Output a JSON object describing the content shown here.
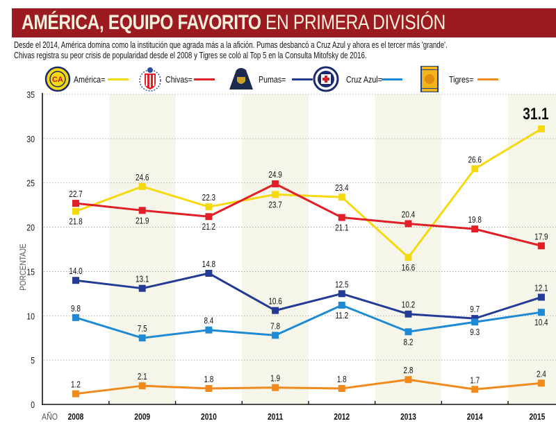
{
  "header": {
    "title_bold": "AMÉRICA, EQUIPO FAVORITO",
    "title_light": "EN PRIMERA DIVISIÓN",
    "subtitle_lines": [
      "Desde el 2014, América domina como la institución que agrada más a la afición. Pumas desbancó a Cruz Azul y ahora es el tercer más 'grande'.",
      "Chivas registra su peor crisis de popularidad desde el 2008 y Tigres se coló al Top 5 en la Consulta Mitofsky de 2016."
    ]
  },
  "legend": [
    {
      "label": "América=",
      "color": "#f5d90f",
      "icon": "club-america-crest-icon"
    },
    {
      "label": "Chivas=",
      "color": "#e01f26",
      "icon": "chivas-crest-icon"
    },
    {
      "label": "Pumas=",
      "color": "#233b95",
      "icon": "pumas-crest-icon"
    },
    {
      "label": "Cruz Azul=",
      "color": "#1f8ad4",
      "icon": "cruz-azul-crest-icon"
    },
    {
      "label": "Tigres=",
      "color": "#f08a1d",
      "icon": "tigres-crest-icon"
    }
  ],
  "chart_data": {
    "type": "line",
    "title": "AMÉRICA, EQUIPO FAVORITO EN PRIMERA DIVISIÓN",
    "xlabel": "AÑO",
    "ylabel": "PORCENTAJE",
    "x": [
      "2008",
      "2009",
      "2010",
      "2011",
      "2012",
      "2013",
      "2014",
      "2015"
    ],
    "ylim": [
      0,
      35
    ],
    "yticks": [
      0,
      5,
      10,
      15,
      20,
      25,
      30,
      35
    ],
    "grid": "horizontal-dotted",
    "alternating_column_shading": true,
    "legend_position": "top",
    "series": [
      {
        "name": "América",
        "color": "#f5d90f",
        "values": [
          21.8,
          24.6,
          22.3,
          23.7,
          23.4,
          16.6,
          26.6,
          31.1
        ],
        "labels": [
          "21.8",
          "24.6",
          "22.3",
          "23.7",
          "23.4",
          "16.6",
          "26.6",
          "31.1"
        ],
        "label_pos": [
          "below",
          "above",
          "above",
          "below",
          "above",
          "below",
          "above",
          "above-big"
        ]
      },
      {
        "name": "Chivas",
        "color": "#e01f26",
        "values": [
          22.7,
          21.9,
          21.2,
          24.9,
          21.1,
          20.4,
          19.8,
          17.9
        ],
        "labels": [
          "22.7",
          "21.9",
          "21.2",
          "24.9",
          "21.1",
          "20.4",
          "19.8",
          "17.9"
        ],
        "label_pos": [
          "above",
          "below",
          "below",
          "above",
          "below",
          "above",
          "above",
          "above"
        ]
      },
      {
        "name": "Pumas",
        "color": "#233b95",
        "values": [
          14.0,
          13.1,
          14.8,
          10.6,
          12.5,
          10.2,
          9.7,
          12.1
        ],
        "labels": [
          "14.0",
          "13.1",
          "14.8",
          "10.6",
          "12.5",
          "10.2",
          "9.7",
          "12.1"
        ],
        "label_pos": [
          "above",
          "above",
          "above",
          "above",
          "above",
          "above",
          "above",
          "above"
        ]
      },
      {
        "name": "Cruz Azul",
        "color": "#1f8ad4",
        "values": [
          9.8,
          7.5,
          8.4,
          7.8,
          11.2,
          8.2,
          9.3,
          10.4
        ],
        "labels": [
          "9.8",
          "7.5",
          "8.4",
          "7.8",
          "11.2",
          "8.2",
          "9.3",
          "10.4"
        ],
        "label_pos": [
          "above",
          "above",
          "above",
          "above",
          "below",
          "below",
          "below",
          "below"
        ]
      },
      {
        "name": "Tigres",
        "color": "#f08a1d",
        "values": [
          1.2,
          2.1,
          1.8,
          1.9,
          1.8,
          2.8,
          1.7,
          2.4
        ],
        "labels": [
          "1.2",
          "2.1",
          "1.8",
          "1.9",
          "1.8",
          "2.8",
          "1.7",
          "2.4"
        ],
        "label_pos": [
          "above",
          "above",
          "above",
          "above",
          "above",
          "above",
          "above",
          "above"
        ]
      }
    ]
  }
}
